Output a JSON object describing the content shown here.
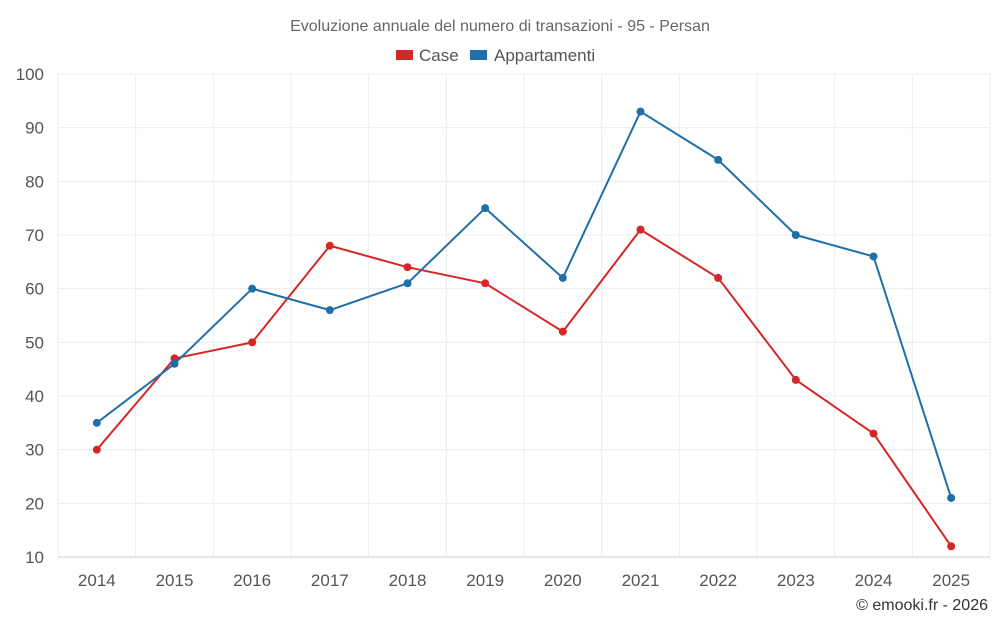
{
  "chart_data": {
    "type": "line",
    "title": "Evoluzione annuale del numero di transazioni - 95 - Persan",
    "categories": [
      "2014",
      "2015",
      "2016",
      "2017",
      "2018",
      "2019",
      "2020",
      "2021",
      "2022",
      "2023",
      "2024",
      "2025"
    ],
    "series": [
      {
        "name": "Case",
        "color": "#d62728",
        "values": [
          30,
          47,
          50,
          68,
          64,
          61,
          52,
          71,
          62,
          43,
          33,
          12
        ]
      },
      {
        "name": "Appartamenti",
        "color": "#1f6fa8",
        "values": [
          35,
          46,
          60,
          56,
          61,
          75,
          62,
          93,
          84,
          70,
          66,
          21
        ]
      }
    ],
    "ylim": [
      10,
      100
    ],
    "yticks": [
      10,
      20,
      30,
      40,
      50,
      60,
      70,
      80,
      90,
      100
    ],
    "xlabel": "",
    "ylabel": "",
    "grid": true,
    "legend": "top-center"
  },
  "credit": "© emooki.fr - 2026"
}
